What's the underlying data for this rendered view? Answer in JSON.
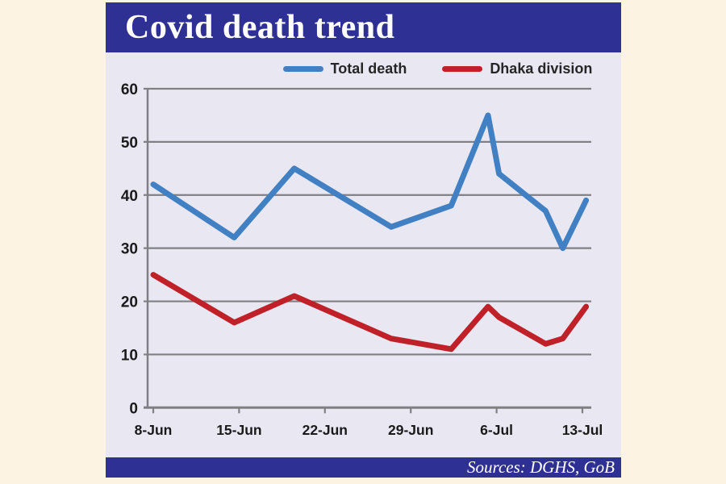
{
  "page": {
    "background": "#fdf3e2"
  },
  "header": {
    "title": "Covid death trend",
    "bar_color": "#2e3193",
    "text_color": "#ffffff"
  },
  "footer": {
    "source_text": "Sources: DGHS, GoB"
  },
  "chart_data": {
    "type": "line",
    "title": "Covid death trend",
    "xlabel": "",
    "ylabel": "",
    "ylim": [
      0,
      60
    ],
    "grid": true,
    "legend_position": "top",
    "plot_bg": "#e9e8f2",
    "grid_color": "#7f7f84",
    "axis_label_color": "#1a1a1a",
    "x_axis": {
      "tick_days": [
        0,
        7,
        14,
        21,
        28,
        35
      ],
      "tick_labels": [
        "8-Jun",
        "15-Jun",
        "22-Jun",
        "29-Jun",
        "6-Jul",
        "13-Jul"
      ]
    },
    "y_axis": {
      "min": 0,
      "max": 60,
      "step": 10,
      "tick_labels": [
        "0",
        "10",
        "20",
        "30",
        "40",
        "50",
        "60"
      ]
    },
    "x_days": [
      0,
      6.6,
      11.5,
      19.4,
      24.3,
      27.3,
      28.2,
      32,
      33.4,
      35.3
    ],
    "approx_dates": [
      "8-Jun",
      "15-Jun",
      "19-Jun",
      "27-Jun",
      "2-Jul",
      "5-Jul",
      "6-Jul",
      "10-Jul",
      "11-Jul",
      "13-Jul"
    ],
    "series": [
      {
        "name": "Total death",
        "color": "#4180c2",
        "values": [
          42,
          32,
          45,
          34,
          38,
          55,
          44,
          37,
          30,
          39
        ]
      },
      {
        "name": "Dhaka division",
        "color": "#c02129",
        "values": [
          25,
          16,
          21,
          13,
          11,
          19,
          17,
          12,
          13,
          19
        ]
      }
    ]
  }
}
